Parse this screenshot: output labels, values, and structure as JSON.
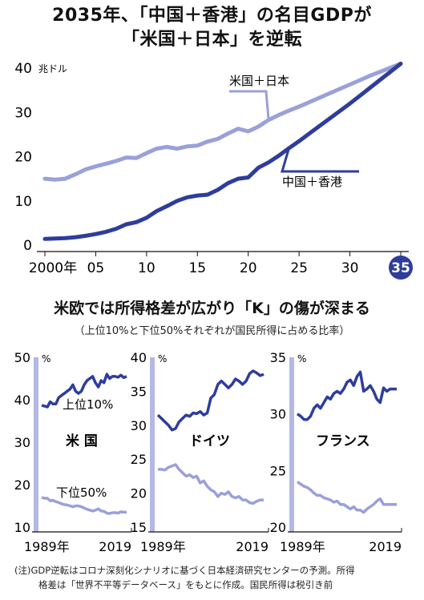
{
  "main_chart": {
    "title_line1": "2035年、「中国＋香港」の名目GDPが",
    "title_line2": "「米国＋日本」を逆転",
    "unit": "兆ドル",
    "colors": {
      "us_japan": "#9aa0d8",
      "china_hk": "#2e3d9c",
      "axis": "#111111",
      "highlight_circle": "#2e3d9c"
    }
  },
  "panel_section": {
    "title": "米欧では所得格差が広がり「K」の傷が深まる",
    "subtitle": "（上位10%と下位50%それぞれが国民所得に占める比率）",
    "colors": {
      "top10": "#2e3d9c",
      "bottom50": "#9aa0d8",
      "axis_bar": "#b4b8e4"
    }
  },
  "footnote": {
    "line1": "(注)GDP逆転はコロナ深刻化シナリオに基づく日本経済研究センターの予測。所得",
    "line2": "格差は「世界不平等データベース」をもとに作成。国民所得は税引き前"
  },
  "chart_data": [
    {
      "type": "line",
      "title": "2035年、「中国＋香港」の名目GDPが「米国＋日本」を逆転",
      "ylabel": "兆ドル",
      "xlim": [
        2000,
        2035
      ],
      "ylim": [
        0,
        42
      ],
      "x_ticks": [
        2000,
        2005,
        2010,
        2015,
        2020,
        2025,
        2030,
        2035
      ],
      "x_tick_labels": [
        "2000年",
        "05",
        "10",
        "15",
        "20",
        "25",
        "30",
        "35"
      ],
      "y_ticks": [
        0,
        10,
        20,
        30,
        40
      ],
      "y_tick_labels": [
        "0",
        "10",
        "20",
        "30",
        "40"
      ],
      "grid": false,
      "series": [
        {
          "name": "米国＋日本",
          "x": [
            2000,
            2001,
            2002,
            2003,
            2004,
            2005,
            2006,
            2007,
            2008,
            2009,
            2010,
            2011,
            2012,
            2013,
            2014,
            2015,
            2016,
            2017,
            2018,
            2019,
            2020,
            2021,
            2022,
            2023,
            2024,
            2025,
            2026,
            2027,
            2028,
            2029,
            2030,
            2031,
            2032,
            2033,
            2034,
            2035
          ],
          "values": [
            15.0,
            14.8,
            15.0,
            16.0,
            17.1,
            17.8,
            18.4,
            19.0,
            19.8,
            19.7,
            20.8,
            21.8,
            22.2,
            21.8,
            22.3,
            22.5,
            23.4,
            24.0,
            25.2,
            26.3,
            25.7,
            26.8,
            28.3,
            29.4,
            30.4,
            31.3,
            32.3,
            33.3,
            34.3,
            35.3,
            36.3,
            37.3,
            38.3,
            39.2,
            40.1,
            41.0
          ]
        },
        {
          "name": "中国＋香港",
          "x": [
            2000,
            2001,
            2002,
            2003,
            2004,
            2005,
            2006,
            2007,
            2008,
            2009,
            2010,
            2011,
            2012,
            2013,
            2014,
            2015,
            2016,
            2017,
            2018,
            2019,
            2020,
            2021,
            2022,
            2023,
            2024,
            2025,
            2026,
            2027,
            2028,
            2029,
            2030,
            2031,
            2032,
            2033,
            2034,
            2035
          ],
          "values": [
            1.4,
            1.5,
            1.6,
            1.8,
            2.1,
            2.5,
            3.0,
            3.7,
            4.7,
            5.2,
            6.2,
            7.7,
            8.8,
            10.0,
            10.8,
            11.2,
            11.4,
            12.5,
            14.0,
            15.0,
            15.3,
            17.5,
            18.7,
            20.2,
            21.9,
            23.5,
            25.2,
            26.9,
            28.6,
            30.3,
            32.0,
            33.8,
            35.6,
            37.4,
            39.2,
            41.0
          ]
        }
      ]
    },
    {
      "type": "line",
      "title": "米 国",
      "xlim": [
        1989,
        2019
      ],
      "ylim": [
        10,
        50
      ],
      "y_ticks": [
        10,
        20,
        30,
        40,
        50
      ],
      "y_tick_labels": [
        "10",
        "20",
        "30",
        "40",
        "50"
      ],
      "y_unit": "%",
      "x_tick_labels": [
        "1989年",
        "2019"
      ],
      "series": [
        {
          "name": "上位10%",
          "x": [
            1989,
            1990,
            1991,
            1992,
            1993,
            1994,
            1995,
            1996,
            1997,
            1998,
            1999,
            2000,
            2001,
            2002,
            2003,
            2004,
            2005,
            2006,
            2007,
            2008,
            2009,
            2010,
            2011,
            2012,
            2013,
            2014,
            2015,
            2016,
            2017,
            2018,
            2019
          ],
          "values": [
            38.7,
            38.5,
            38.3,
            39.5,
            39.0,
            39.0,
            40.5,
            41.0,
            41.5,
            42.0,
            42.5,
            43.5,
            42.0,
            41.5,
            42.0,
            43.5,
            44.5,
            45.0,
            45.5,
            44.0,
            43.0,
            44.5,
            44.0,
            46.0,
            45.0,
            45.5,
            45.5,
            45.3,
            45.8,
            45.2,
            45.5
          ]
        },
        {
          "name": "下位50%",
          "x": [
            1989,
            1990,
            1991,
            1992,
            1993,
            1994,
            1995,
            1996,
            1997,
            1998,
            1999,
            2000,
            2001,
            2002,
            2003,
            2004,
            2005,
            2006,
            2007,
            2008,
            2009,
            2010,
            2011,
            2012,
            2013,
            2014,
            2015,
            2016,
            2017,
            2018,
            2019
          ],
          "values": [
            17.0,
            16.8,
            16.8,
            16.2,
            16.3,
            16.0,
            15.8,
            15.5,
            15.3,
            15.2,
            15.0,
            14.8,
            15.0,
            15.0,
            14.8,
            14.5,
            14.2,
            14.0,
            13.8,
            14.0,
            14.3,
            13.8,
            13.7,
            13.3,
            13.2,
            13.4,
            13.4,
            13.3,
            13.6,
            13.5,
            13.5
          ]
        }
      ]
    },
    {
      "type": "line",
      "title": "ドイツ",
      "xlim": [
        1989,
        2019
      ],
      "ylim": [
        15,
        40
      ],
      "y_ticks": [
        15,
        20,
        25,
        30,
        35,
        40
      ],
      "y_tick_labels": [
        "15",
        "20",
        "25",
        "30",
        "35",
        "40"
      ],
      "y_unit": "%",
      "x_tick_labels": [
        "1989年",
        "2019"
      ],
      "series": [
        {
          "name": "上位10%",
          "x": [
            1989,
            1990,
            1991,
            1992,
            1993,
            1994,
            1995,
            1996,
            1997,
            1998,
            1999,
            2000,
            2001,
            2002,
            2003,
            2004,
            2005,
            2006,
            2007,
            2008,
            2009,
            2010,
            2011,
            2012,
            2013,
            2014,
            2015,
            2016,
            2017,
            2018,
            2019
          ],
          "values": [
            31.5,
            31.0,
            30.5,
            30.0,
            29.3,
            29.5,
            30.5,
            31.0,
            31.5,
            31.3,
            31.8,
            31.7,
            32.0,
            31.5,
            31.8,
            34.0,
            34.5,
            36.0,
            36.5,
            36.0,
            35.5,
            36.0,
            36.8,
            36.5,
            36.0,
            36.5,
            37.6,
            38.0,
            37.7,
            37.3,
            37.5
          ]
        },
        {
          "name": "下位50%",
          "x": [
            1989,
            1990,
            1991,
            1992,
            1993,
            1994,
            1995,
            1996,
            1997,
            1998,
            1999,
            2000,
            2001,
            2002,
            2003,
            2004,
            2005,
            2006,
            2007,
            2008,
            2009,
            2010,
            2011,
            2012,
            2013,
            2014,
            2015,
            2016,
            2017,
            2018,
            2019
          ],
          "values": [
            23.5,
            23.5,
            23.4,
            23.8,
            24.0,
            24.2,
            23.5,
            23.0,
            22.5,
            22.7,
            22.3,
            22.5,
            21.5,
            21.8,
            21.0,
            20.5,
            20.2,
            19.5,
            20.0,
            19.8,
            20.2,
            19.5,
            19.3,
            19.5,
            19.0,
            19.0,
            18.6,
            18.5,
            18.8,
            19.0,
            19.0
          ]
        }
      ]
    },
    {
      "type": "line",
      "title": "フランス",
      "xlim": [
        1989,
        2019
      ],
      "ylim": [
        20,
        35
      ],
      "y_ticks": [
        20,
        25,
        30,
        35
      ],
      "y_tick_labels": [
        "20",
        "25",
        "30",
        "35"
      ],
      "y_unit": "%",
      "x_tick_labels": [
        "1989年",
        "2019"
      ],
      "series": [
        {
          "name": "上位10%",
          "x": [
            1989,
            1990,
            1991,
            1992,
            1993,
            1994,
            1995,
            1996,
            1997,
            1998,
            1999,
            2000,
            2001,
            2002,
            2003,
            2004,
            2005,
            2006,
            2007,
            2008,
            2009,
            2010,
            2011,
            2012,
            2013,
            2014,
            2015,
            2016,
            2017,
            2018,
            2019
          ],
          "values": [
            30.0,
            29.8,
            29.5,
            29.5,
            29.8,
            30.5,
            30.8,
            30.5,
            31.0,
            31.5,
            31.3,
            31.8,
            32.0,
            31.8,
            32.2,
            32.8,
            33.0,
            32.5,
            33.3,
            33.7,
            32.0,
            32.2,
            32.5,
            32.0,
            31.3,
            31.0,
            32.3,
            32.0,
            32.2,
            32.2,
            32.2
          ]
        },
        {
          "name": "下位50%",
          "x": [
            1989,
            1990,
            1991,
            1992,
            1993,
            1994,
            1995,
            1996,
            1997,
            1998,
            1999,
            2000,
            2001,
            2002,
            2003,
            2004,
            2005,
            2006,
            2007,
            2008,
            2009,
            2010,
            2011,
            2012,
            2013,
            2014,
            2015,
            2016,
            2017,
            2018,
            2019
          ],
          "values": [
            24.0,
            23.8,
            23.6,
            23.5,
            23.3,
            23.0,
            22.8,
            22.8,
            22.6,
            22.5,
            22.4,
            22.2,
            22.3,
            22.0,
            22.0,
            21.8,
            21.6,
            21.8,
            21.5,
            21.5,
            21.3,
            21.6,
            21.8,
            22.0,
            22.3,
            22.5,
            22.0,
            22.0,
            22.0,
            22.0,
            22.0
          ]
        }
      ]
    }
  ]
}
